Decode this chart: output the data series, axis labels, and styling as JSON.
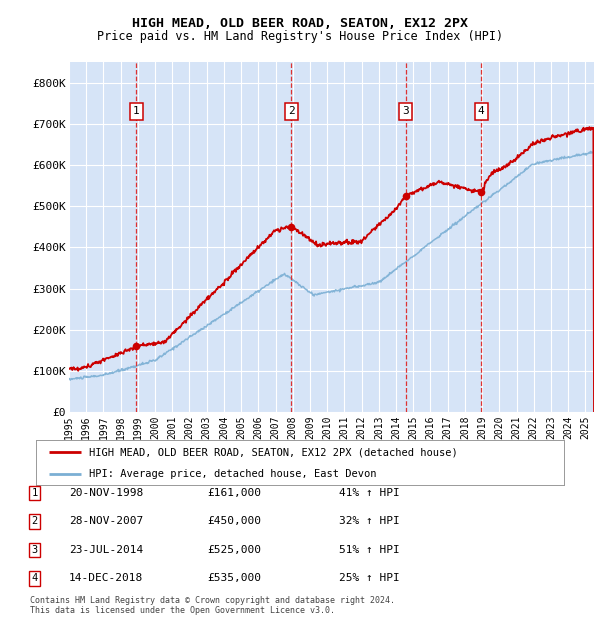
{
  "title": "HIGH MEAD, OLD BEER ROAD, SEATON, EX12 2PX",
  "subtitle": "Price paid vs. HM Land Registry's House Price Index (HPI)",
  "ylabel_ticks": [
    "£0",
    "£100K",
    "£200K",
    "£300K",
    "£400K",
    "£500K",
    "£600K",
    "£700K",
    "£800K"
  ],
  "ytick_vals": [
    0,
    100000,
    200000,
    300000,
    400000,
    500000,
    600000,
    700000,
    800000
  ],
  "ylim": [
    0,
    850000
  ],
  "xlim_start": 1995.0,
  "xlim_end": 2025.5,
  "background_color": "#d6e4f7",
  "grid_color": "#ffffff",
  "sale_dates": [
    1998.9,
    2007.9,
    2014.55,
    2018.95
  ],
  "sale_prices": [
    161000,
    450000,
    525000,
    535000
  ],
  "sale_labels": [
    "1",
    "2",
    "3",
    "4"
  ],
  "vline_color": "#dd3333",
  "sale_marker_color": "#cc0000",
  "hpi_line_color": "#7bafd4",
  "price_line_color": "#cc0000",
  "legend_entries": [
    "HIGH MEAD, OLD BEER ROAD, SEATON, EX12 2PX (detached house)",
    "HPI: Average price, detached house, East Devon"
  ],
  "table_rows": [
    [
      "1",
      "20-NOV-1998",
      "£161,000",
      "41% ↑ HPI"
    ],
    [
      "2",
      "28-NOV-2007",
      "£450,000",
      "32% ↑ HPI"
    ],
    [
      "3",
      "23-JUL-2014",
      "£525,000",
      "51% ↑ HPI"
    ],
    [
      "4",
      "14-DEC-2018",
      "£535,000",
      "25% ↑ HPI"
    ]
  ],
  "footnote": "Contains HM Land Registry data © Crown copyright and database right 2024.\nThis data is licensed under the Open Government Licence v3.0."
}
